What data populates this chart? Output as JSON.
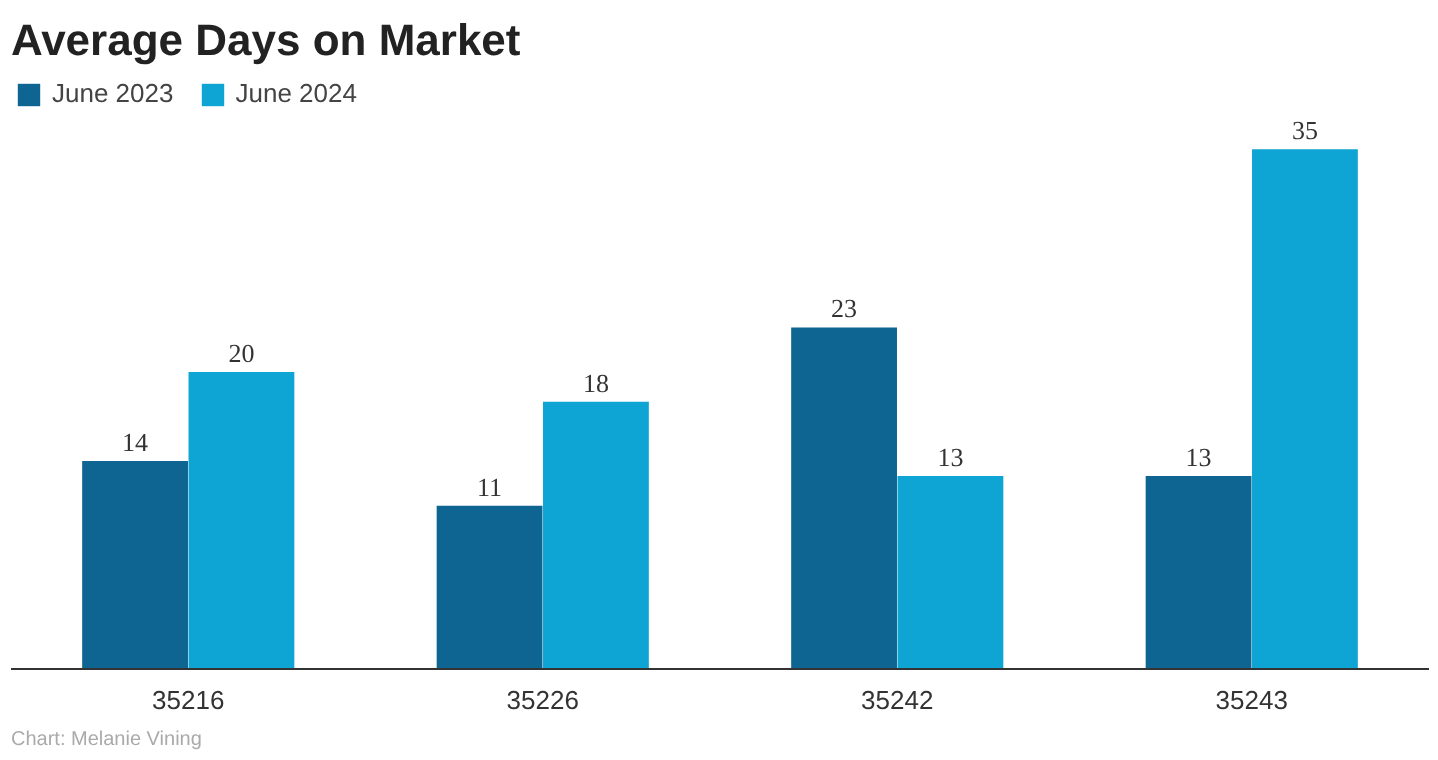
{
  "chart_data": {
    "type": "bar",
    "title": "Average Days on Market",
    "categories": [
      "35216",
      "35226",
      "35242",
      "35243"
    ],
    "series": [
      {
        "name": "June 2023",
        "color": "#0f6591",
        "values": [
          14,
          11,
          23,
          13
        ]
      },
      {
        "name": "June 2024",
        "color": "#0ea5d4",
        "values": [
          20,
          18,
          13,
          35
        ]
      }
    ],
    "ylim": [
      0,
      40
    ],
    "data_labels": true,
    "legend": "top left",
    "annotations": [
      "Chart: Melanie Vining"
    ]
  }
}
